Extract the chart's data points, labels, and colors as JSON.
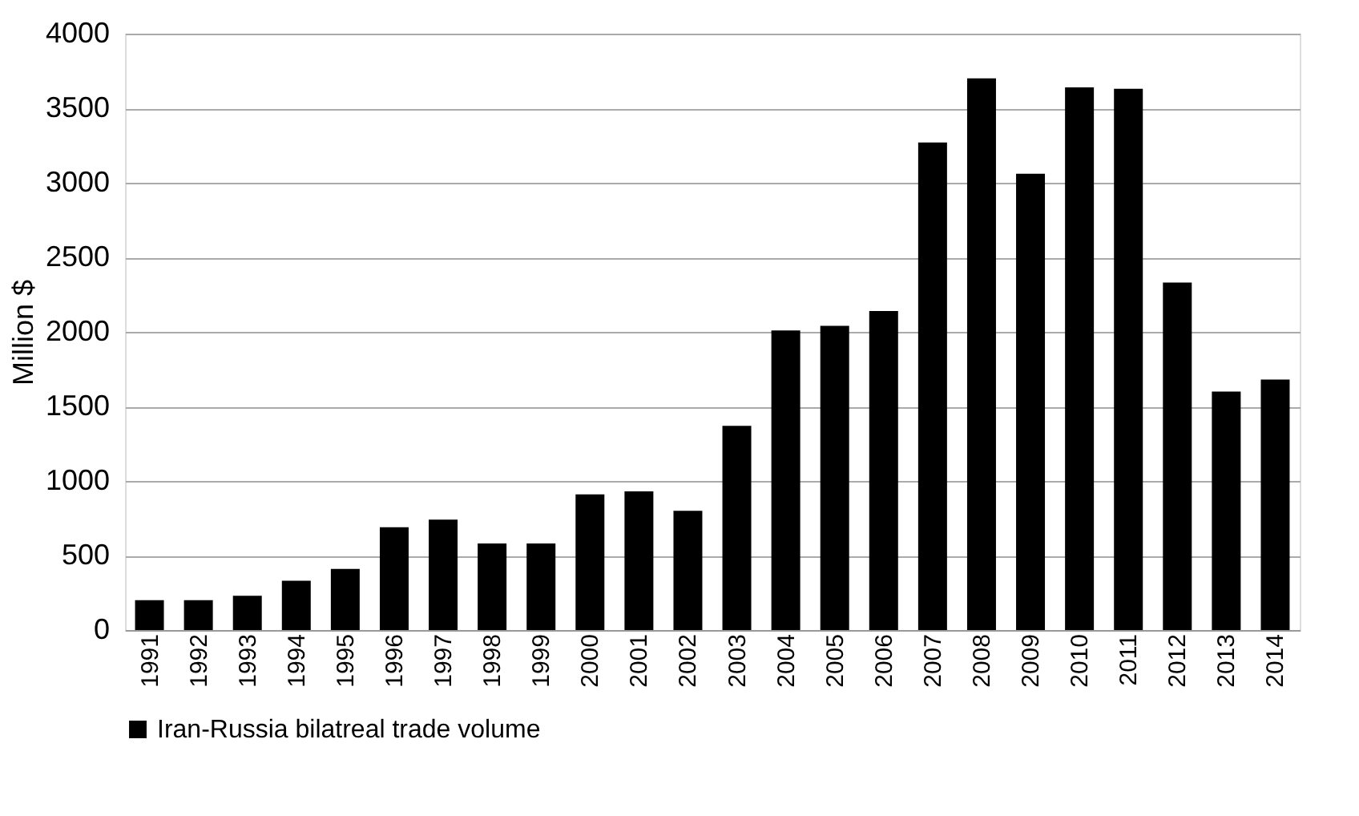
{
  "chart_data": {
    "type": "bar",
    "ylabel": "Million $",
    "categories": [
      "1991",
      "1992",
      "1993",
      "1994",
      "1995",
      "1996",
      "1997",
      "1998",
      "1999",
      "2000",
      "2001",
      "2002",
      "2003",
      "2004",
      "2005",
      "2006",
      "2007",
      "2008",
      "2009",
      "2010",
      "2011",
      "2012",
      "2013",
      "2014"
    ],
    "series": [
      {
        "name": "Iran-Russia bilatreal trade volume",
        "color": "#000000",
        "values": [
          200,
          200,
          230,
          330,
          410,
          690,
          740,
          580,
          580,
          910,
          930,
          800,
          1370,
          2010,
          2040,
          2140,
          3270,
          3700,
          3060,
          3640,
          3630,
          2330,
          1600,
          1680
        ]
      }
    ],
    "ylim": [
      0,
      4000
    ],
    "yticks": [
      0,
      500,
      1000,
      1500,
      2000,
      2500,
      3000,
      3500,
      4000
    ],
    "grid": "y",
    "legend": "bottom"
  }
}
